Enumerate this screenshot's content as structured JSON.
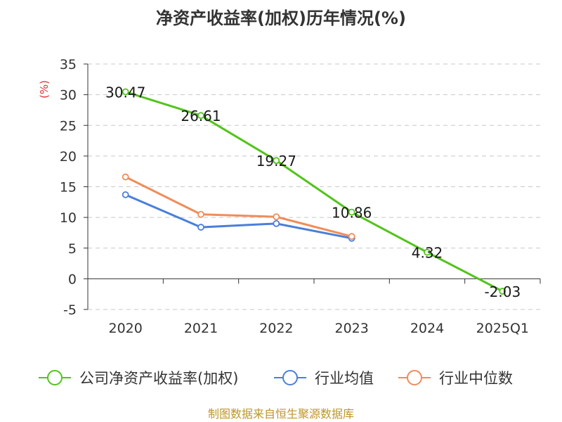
{
  "chart_data": {
    "type": "line",
    "title": "净资产收益率(加权)历年情况(%)",
    "unit_label": "(%)",
    "categories": [
      "2020",
      "2021",
      "2022",
      "2023",
      "2024",
      "2025Q1"
    ],
    "ylim": [
      -5,
      35
    ],
    "yticks": [
      "35",
      "30",
      "25",
      "20",
      "15",
      "10",
      "5",
      "0",
      "-5"
    ],
    "grid": true,
    "legend_position": "bottom",
    "series": [
      {
        "name": "公司净资产收益率(加权)",
        "color": "#52c41a",
        "values": [
          30.47,
          26.61,
          19.27,
          10.86,
          4.32,
          -2.03
        ],
        "labels": [
          "30.47",
          "26.61",
          "19.27",
          "10.86",
          "4.32",
          "-2.03"
        ]
      },
      {
        "name": "行业均值",
        "color": "#4a7fd9",
        "values": [
          13.7,
          8.4,
          9.0,
          6.6,
          null,
          null
        ]
      },
      {
        "name": "行业中位数",
        "color": "#f08c5a",
        "values": [
          16.6,
          10.5,
          10.1,
          6.9,
          null,
          null
        ]
      }
    ]
  },
  "source_text": "制图数据来自恒生聚源数据库"
}
